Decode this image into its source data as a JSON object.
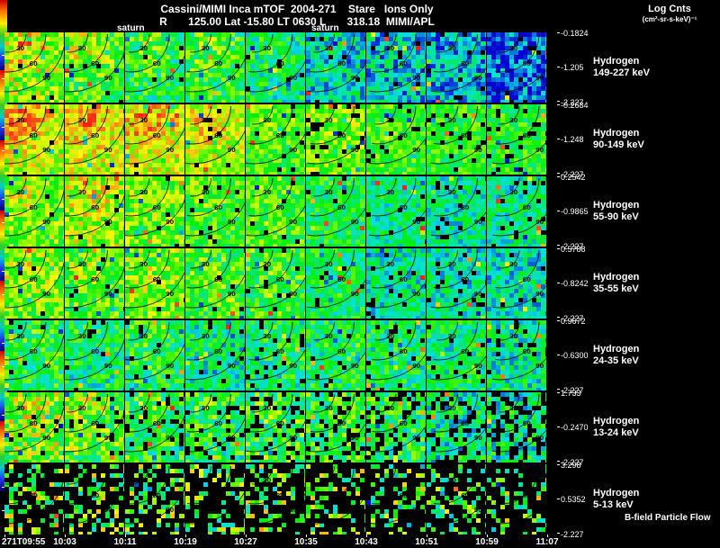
{
  "header": {
    "line1": "Cassini/MIMI Inca mTOF  2004-271    Stare   Ions Only",
    "line2": "R       125.00 Lat -15.80 LT 0630 L       318.18  MIMI/APL",
    "log_units_line1": "Log Cnts",
    "log_units_line2": "(cm²-sr-s-keV)⁻¹",
    "saturn_label": "saturn"
  },
  "footer": {
    "bfield_label": "B-field Particle Flow"
  },
  "time_axis": [
    "271T09:55",
    "10:03",
    "10:11",
    "10:19",
    "10:27",
    "10:35",
    "10:43",
    "10:51",
    "10:59",
    "11:07"
  ],
  "contour_labels": [
    "30",
    "60",
    "90"
  ],
  "colorbar_colors": [
    "#cc0000",
    "#ff7700",
    "#ffee00",
    "#33cc22",
    "#00cccc",
    "#2233ee",
    "#000077"
  ],
  "rows": [
    {
      "band_line1": "Hydrogen",
      "band_line2": "149-227 keV",
      "cbar": {
        "top": "-0.1824",
        "mid": "-1.205",
        "bottom": "-2.227"
      },
      "render": {
        "mean": 0.58,
        "noise": 0.22,
        "cool_right": 0.45,
        "black_base": 0.01,
        "black_col": 0.03,
        "blob": 0.22
      }
    },
    {
      "band_line1": "Hydrogen",
      "band_line2": "90-149 keV",
      "cbar": {
        "top": "-0.2684",
        "mid": "-1.248",
        "bottom": "-2.227"
      },
      "render": {
        "mean": 0.74,
        "noise": 0.16,
        "cool_right": 0.3,
        "black_base": 0.01,
        "black_col": 0.08,
        "blob": 0.22
      }
    },
    {
      "band_line1": "Hydrogen",
      "band_line2": "55-90 keV",
      "cbar": {
        "top": "0.2542",
        "mid": "-0.9865",
        "bottom": "-2.227"
      },
      "render": {
        "mean": 0.63,
        "noise": 0.18,
        "cool_right": 0.28,
        "black_base": 0.01,
        "black_col": 0.04,
        "blob": 0.12
      }
    },
    {
      "band_line1": "Hydrogen",
      "band_line2": "35-55 keV",
      "cbar": {
        "top": "0.5788",
        "mid": "-0.8242",
        "bottom": "-2.227"
      },
      "render": {
        "mean": 0.62,
        "noise": 0.2,
        "cool_right": 0.3,
        "black_base": 0.01,
        "black_col": 0.05,
        "blob": 0.1
      }
    },
    {
      "band_line1": "Hydrogen",
      "band_line2": "24-35 keV",
      "cbar": {
        "top": "0.9672",
        "mid": "-0.6300",
        "bottom": "-2.227"
      },
      "render": {
        "mean": 0.45,
        "noise": 0.22,
        "cool_right": 0.12,
        "black_base": 0.02,
        "black_col": 0.05,
        "blob": 0.08
      }
    },
    {
      "band_line1": "Hydrogen",
      "band_line2": "13-24 keV",
      "cbar": {
        "top": "1.733",
        "mid": "-0.2470",
        "bottom": "-2.227"
      },
      "render": {
        "mean": 0.55,
        "noise": 0.24,
        "cool_right": 0.18,
        "black_base": 0.02,
        "black_col": 0.3,
        "blob": 0.1
      }
    },
    {
      "band_line1": "Hydrogen",
      "band_line2": "5-13 keV",
      "cbar": {
        "top": "3.298",
        "mid": "0.5352",
        "bottom": "-2.227"
      },
      "render": {
        "mean": 0.55,
        "noise": 0.3,
        "cool_right": 0.05,
        "black_base": 0.62,
        "black_col": 0.1,
        "blob": 0.0
      }
    }
  ],
  "chart_data": {
    "type": "heatmap",
    "title": "Cassini/MIMI Inca mTOF 2004-271 Stare Ions Only",
    "subtitle": "R 125.00 Lat -15.80 LT 0630 L 318.18 MIMI/APL",
    "x_tick_labels": [
      "271T09:55",
      "10:03",
      "10:11",
      "10:19",
      "10:27",
      "10:35",
      "10:43",
      "10:51",
      "10:59",
      "11:07"
    ],
    "panel_grid": {
      "columns": 9,
      "rows": 7
    },
    "colormap": "rainbow (red = high log counts, blue = low)",
    "value_units": "Log Cnts (cm²-sr-s-keV)⁻¹",
    "contour_labels": [
      "30",
      "60",
      "90"
    ],
    "rows": [
      {
        "band": "Hydrogen 149-227 keV",
        "scale_max": -0.1824,
        "scale_mid": -1.205,
        "scale_min": -2.227
      },
      {
        "band": "Hydrogen 90-149 keV",
        "scale_max": -0.2684,
        "scale_mid": -1.248,
        "scale_min": -2.227
      },
      {
        "band": "Hydrogen 55-90 keV",
        "scale_max": 0.2542,
        "scale_mid": -0.9865,
        "scale_min": -2.227
      },
      {
        "band": "Hydrogen 35-55 keV",
        "scale_max": 0.5788,
        "scale_mid": -0.8242,
        "scale_min": -2.227
      },
      {
        "band": "Hydrogen 24-35 keV",
        "scale_max": 0.9672,
        "scale_mid": -0.63,
        "scale_min": -2.227
      },
      {
        "band": "Hydrogen 13-24 keV",
        "scale_max": 1.733,
        "scale_mid": -0.247,
        "scale_min": -2.227
      },
      {
        "band": "Hydrogen 5-13 keV",
        "scale_max": 3.298,
        "scale_mid": 0.5352,
        "scale_min": -2.227
      }
    ],
    "annotations": [
      "saturn",
      "saturn",
      "B-field Particle Flow"
    ]
  }
}
